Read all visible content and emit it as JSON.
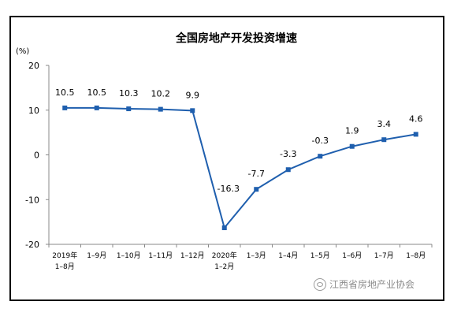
{
  "chart_data": {
    "type": "line",
    "title": "全国房地产开发投资增速",
    "ylabel": "(%)",
    "xlabel": "",
    "ylim": [
      -20,
      20
    ],
    "yticks": [
      20,
      10,
      0,
      -10,
      -20
    ],
    "categories": [
      [
        "2019年",
        "1–8月"
      ],
      [
        "1–9月"
      ],
      [
        "1–10月"
      ],
      [
        "1–11月"
      ],
      [
        "1–12月"
      ],
      [
        "2020年",
        "1–2月"
      ],
      [
        "1–3月"
      ],
      [
        "1–4月"
      ],
      [
        "1–5月"
      ],
      [
        "1–6月"
      ],
      [
        "1–7月"
      ],
      [
        "1–8月"
      ]
    ],
    "series": [
      {
        "values": [
          10.5,
          10.5,
          10.3,
          10.2,
          9.9,
          -16.3,
          -7.7,
          -3.3,
          -0.3,
          1.9,
          3.4,
          4.6
        ],
        "color": "#1f5fae"
      }
    ],
    "data_labels": [
      "10.5",
      "10.5",
      "10.3",
      "10.2",
      "9.9",
      "-16.3",
      "-7.7",
      "-3.3",
      "-0.3",
      "1.9",
      "3.4",
      "4.6"
    ],
    "grid": false,
    "legend": "none"
  },
  "watermark": {
    "text": "江西省房地产业协会",
    "icon": "wechat-icon"
  }
}
